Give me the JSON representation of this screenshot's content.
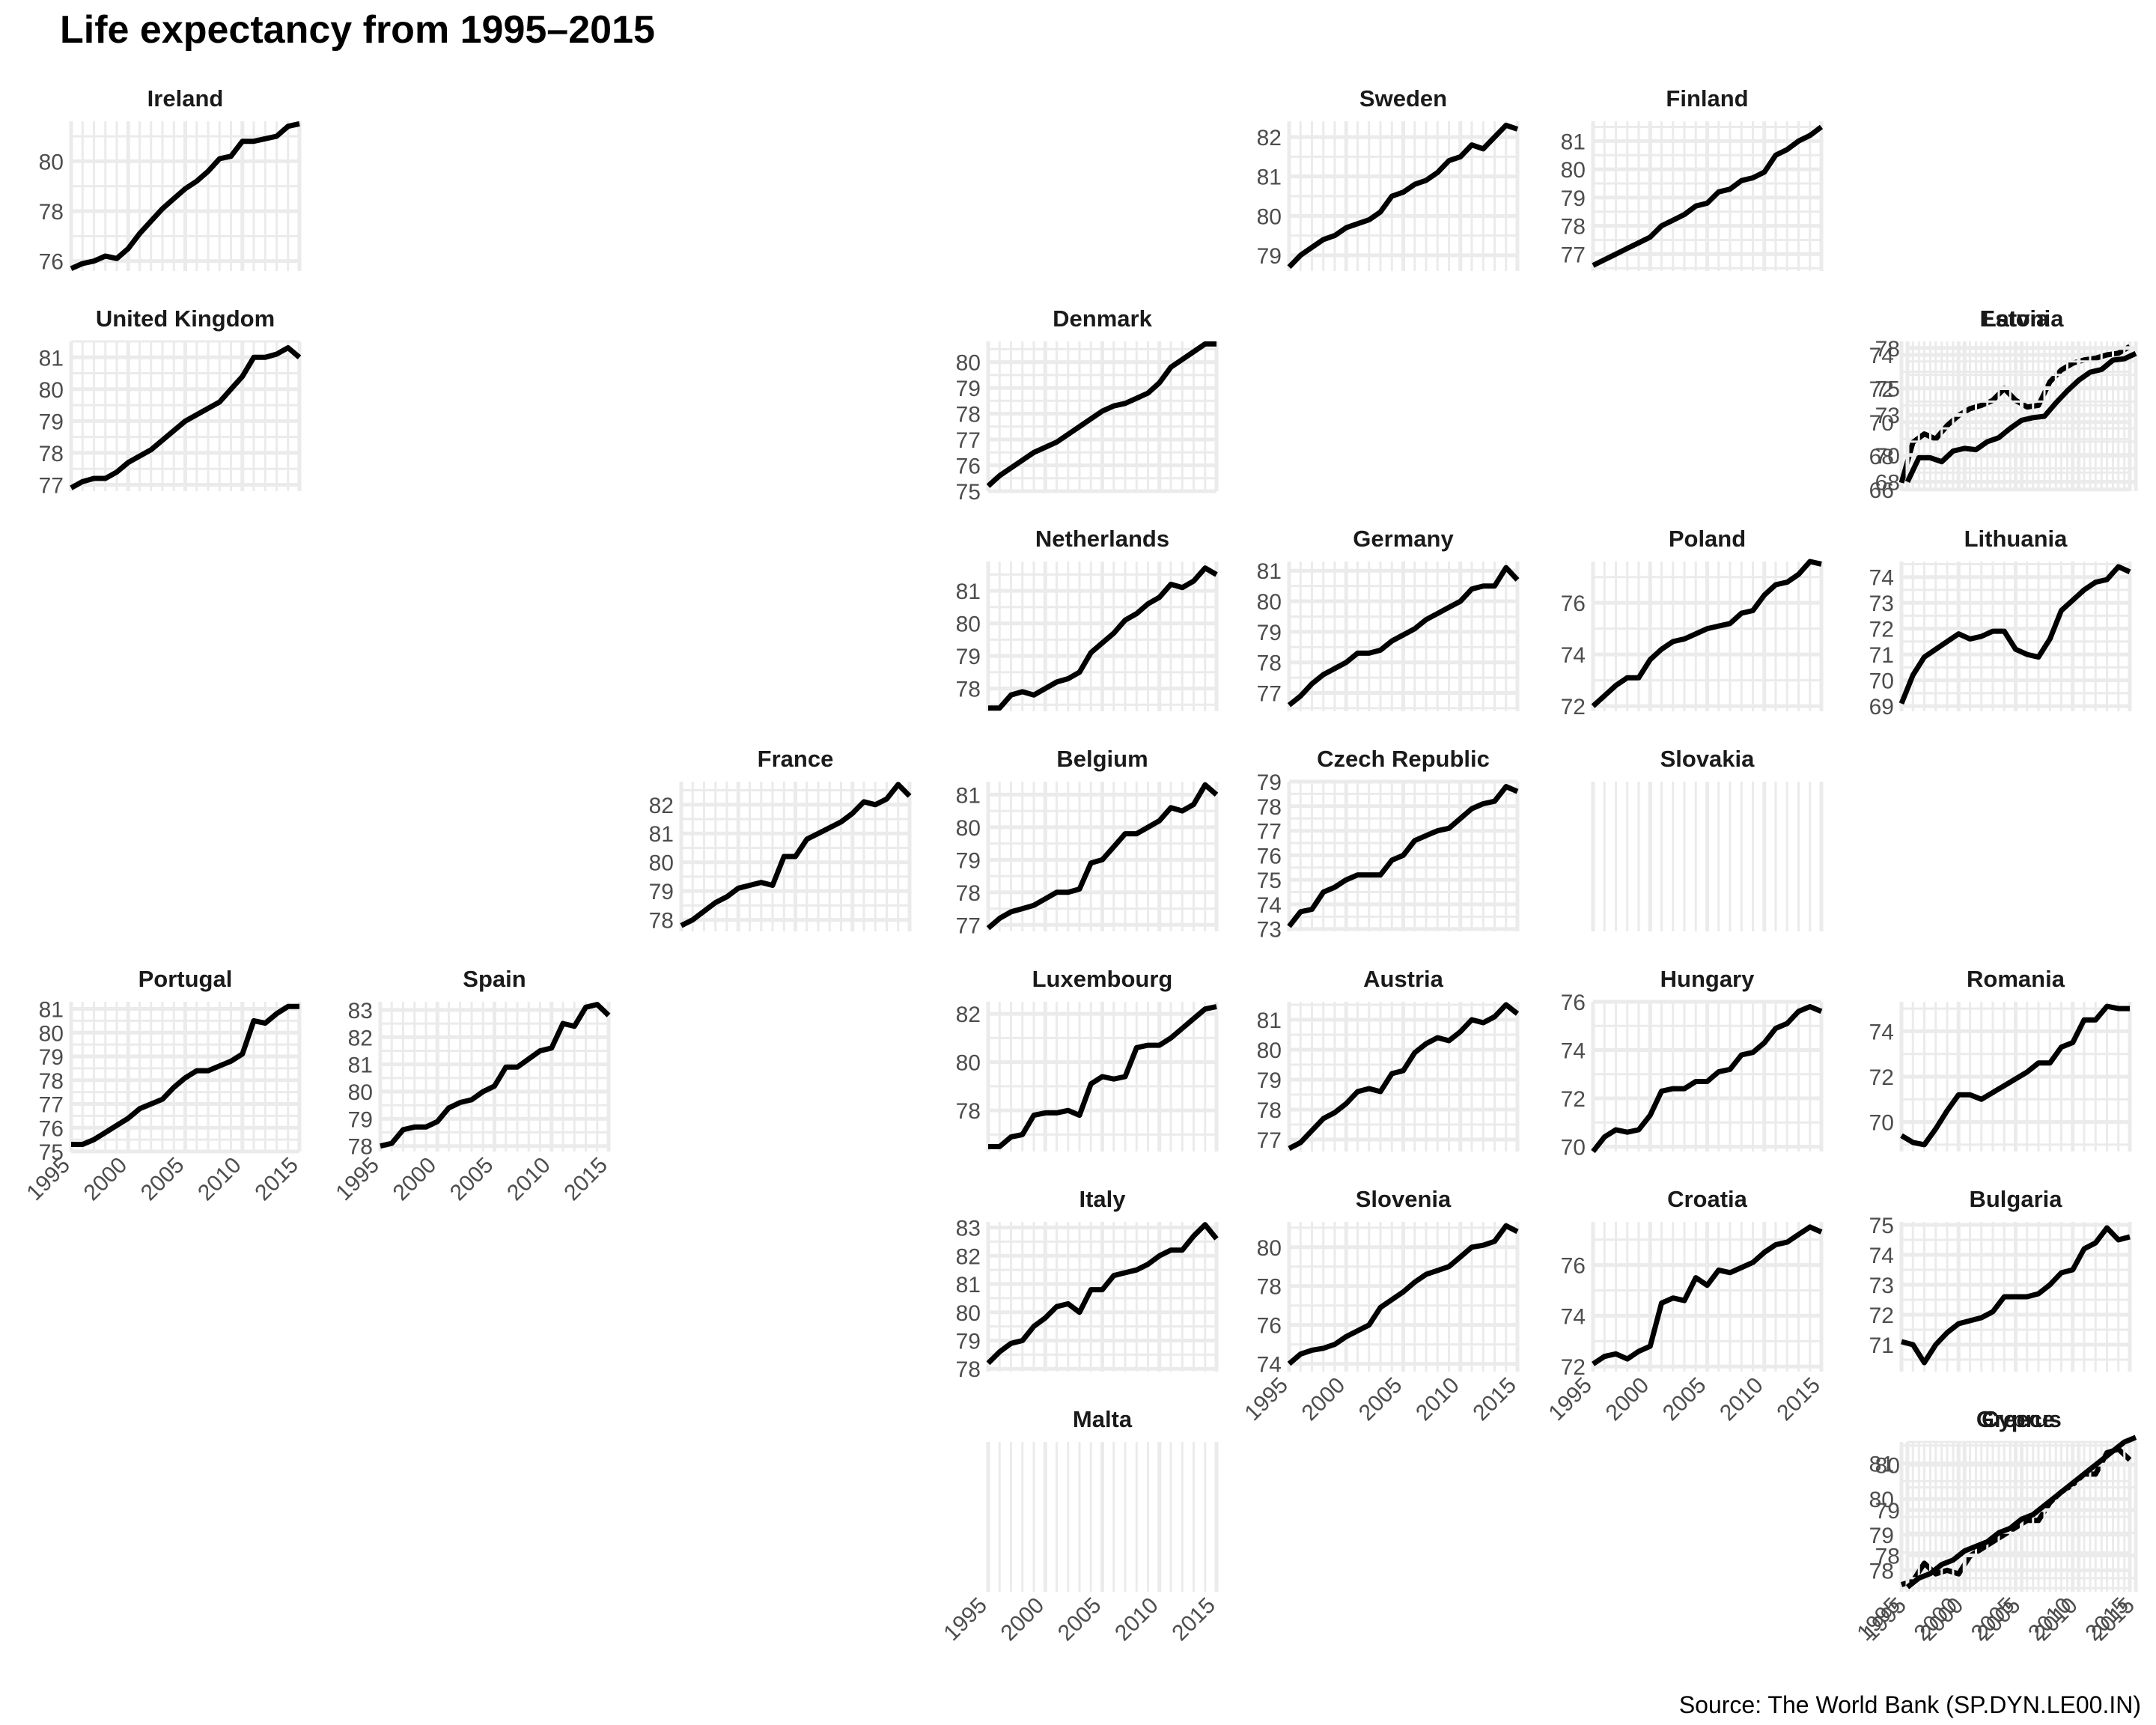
{
  "title": "Life expectancy from 1995–2015",
  "source": "Source: The World Bank (SP.DYN.LE00.IN)",
  "chart_data": {
    "type": "line",
    "x": [
      1995,
      1996,
      1997,
      1998,
      1999,
      2000,
      2001,
      2002,
      2003,
      2004,
      2005,
      2006,
      2007,
      2008,
      2009,
      2010,
      2011,
      2012,
      2013,
      2014,
      2015
    ],
    "x_ticks": [
      1995,
      2000,
      2005,
      2010,
      2015
    ],
    "line_color": "#000000",
    "grid_color": "#ebebeb",
    "panels": [
      {
        "name": "Ireland",
        "col": 0,
        "row": 0,
        "ylim": [
          75.6,
          81.6
        ],
        "yticks": [
          76,
          78,
          80
        ],
        "values": [
          75.7,
          75.9,
          76.0,
          76.2,
          76.1,
          76.5,
          77.1,
          77.6,
          78.1,
          78.5,
          78.9,
          79.2,
          79.6,
          80.1,
          80.2,
          80.8,
          80.8,
          80.9,
          81.0,
          81.4,
          81.5
        ]
      },
      {
        "name": "Sweden",
        "col": 4,
        "row": 0,
        "ylim": [
          78.6,
          82.4
        ],
        "yticks": [
          79,
          80,
          81,
          82
        ],
        "values": [
          78.7,
          79.0,
          79.2,
          79.4,
          79.5,
          79.7,
          79.8,
          79.9,
          80.1,
          80.5,
          80.6,
          80.8,
          80.9,
          81.1,
          81.4,
          81.5,
          81.8,
          81.7,
          82.0,
          82.3,
          82.2
        ]
      },
      {
        "name": "Finland",
        "col": 5,
        "row": 0,
        "ylim": [
          76.4,
          81.7
        ],
        "yticks": [
          77,
          78,
          79,
          80,
          81
        ],
        "values": [
          76.6,
          76.8,
          77.0,
          77.2,
          77.4,
          77.6,
          78.0,
          78.2,
          78.4,
          78.7,
          78.8,
          79.2,
          79.3,
          79.6,
          79.7,
          79.9,
          80.5,
          80.7,
          81.0,
          81.2,
          81.5
        ]
      },
      {
        "name": "United Kingdom",
        "col": 0,
        "row": 1,
        "ylim": [
          76.8,
          81.5
        ],
        "yticks": [
          77,
          78,
          79,
          80,
          81
        ],
        "values": [
          76.9,
          77.1,
          77.2,
          77.2,
          77.4,
          77.7,
          77.9,
          78.1,
          78.4,
          78.7,
          79.0,
          79.2,
          79.4,
          79.6,
          80.0,
          80.4,
          81.0,
          81.0,
          81.1,
          81.3,
          81.0
        ]
      },
      {
        "name": "Denmark",
        "col": 3,
        "row": 1,
        "ylim": [
          75.0,
          80.8
        ],
        "yticks": [
          75,
          76,
          77,
          78,
          79,
          80
        ],
        "values": [
          75.2,
          75.6,
          75.9,
          76.2,
          76.5,
          76.7,
          76.9,
          77.2,
          77.5,
          77.8,
          78.1,
          78.3,
          78.4,
          78.6,
          78.8,
          79.2,
          79.8,
          80.1,
          80.4,
          80.7,
          80.7
        ]
      },
      {
        "name": "Latvia",
        "col": 6,
        "row": 1,
        "ylim": [
          65.9,
          74.8
        ],
        "yticks": [
          66,
          68,
          70,
          72,
          74
        ],
        "values": [
          66.4,
          68.8,
          69.3,
          69.0,
          69.8,
          70.4,
          70.8,
          71.0,
          71.3,
          72.0,
          71.3,
          70.9,
          71.0,
          72.4,
          73.1,
          73.5,
          73.7,
          73.8,
          74.0,
          74.1,
          74.5
        ]
      },
      {
        "name": "Estonia",
        "col": 7,
        "row": 1,
        "ylim": [
          67.3,
          78.5
        ],
        "yticks": [
          68,
          70,
          73,
          75,
          78
        ],
        "values": [
          68.0,
          69.8,
          69.8,
          69.5,
          70.3,
          70.5,
          70.4,
          71.0,
          71.3,
          72.0,
          72.6,
          72.8,
          72.9,
          73.9,
          74.8,
          75.6,
          76.2,
          76.4,
          77.1,
          77.2,
          77.6
        ]
      },
      {
        "name": "Netherlands",
        "col": 3,
        "row": 2,
        "ylim": [
          77.3,
          81.9
        ],
        "yticks": [
          78,
          79,
          80,
          81
        ],
        "values": [
          77.4,
          77.4,
          77.8,
          77.9,
          77.8,
          78.0,
          78.2,
          78.3,
          78.5,
          79.1,
          79.4,
          79.7,
          80.1,
          80.3,
          80.6,
          80.8,
          81.2,
          81.1,
          81.3,
          81.7,
          81.5
        ]
      },
      {
        "name": "Germany",
        "col": 4,
        "row": 2,
        "ylim": [
          76.4,
          81.3
        ],
        "yticks": [
          77,
          78,
          79,
          80,
          81
        ],
        "values": [
          76.6,
          76.9,
          77.3,
          77.6,
          77.8,
          78.0,
          78.3,
          78.3,
          78.4,
          78.7,
          78.9,
          79.1,
          79.4,
          79.6,
          79.8,
          80.0,
          80.4,
          80.5,
          80.5,
          81.1,
          80.7
        ]
      },
      {
        "name": "Poland",
        "col": 5,
        "row": 2,
        "ylim": [
          71.8,
          77.6
        ],
        "yticks": [
          72,
          74,
          76
        ],
        "values": [
          72.0,
          72.4,
          72.8,
          73.1,
          73.1,
          73.8,
          74.2,
          74.5,
          74.6,
          74.8,
          75.0,
          75.1,
          75.2,
          75.6,
          75.7,
          76.3,
          76.7,
          76.8,
          77.1,
          77.6,
          77.5
        ]
      },
      {
        "name": "Lithuania",
        "col": 6,
        "row": 2,
        "ylim": [
          68.8,
          74.6
        ],
        "yticks": [
          69,
          70,
          71,
          72,
          73,
          74
        ],
        "values": [
          69.1,
          70.2,
          70.9,
          71.2,
          71.5,
          71.8,
          71.6,
          71.7,
          71.9,
          71.9,
          71.2,
          71.0,
          70.9,
          71.6,
          72.7,
          73.1,
          73.5,
          73.8,
          73.9,
          74.4,
          74.2
        ]
      },
      {
        "name": "France",
        "col": 2,
        "row": 3,
        "ylim": [
          77.6,
          82.8
        ],
        "yticks": [
          78,
          79,
          80,
          81,
          82
        ],
        "values": [
          77.8,
          78.0,
          78.3,
          78.6,
          78.8,
          79.1,
          79.2,
          79.3,
          79.2,
          80.2,
          80.2,
          80.8,
          81.0,
          81.2,
          81.4,
          81.7,
          82.1,
          82.0,
          82.2,
          82.7,
          82.3
        ]
      },
      {
        "name": "Belgium",
        "col": 3,
        "row": 3,
        "ylim": [
          76.8,
          81.4
        ],
        "yticks": [
          77,
          78,
          79,
          80,
          81
        ],
        "values": [
          76.9,
          77.2,
          77.4,
          77.5,
          77.6,
          77.8,
          78.0,
          78.0,
          78.1,
          78.9,
          79.0,
          79.4,
          79.8,
          79.8,
          80.0,
          80.2,
          80.6,
          80.5,
          80.7,
          81.3,
          81.0
        ]
      },
      {
        "name": "Czech Republic",
        "col": 4,
        "row": 3,
        "ylim": [
          72.9,
          79.0
        ],
        "yticks": [
          73,
          74,
          75,
          76,
          77,
          78,
          79
        ],
        "values": [
          73.1,
          73.7,
          73.8,
          74.5,
          74.7,
          75.0,
          75.2,
          75.2,
          75.2,
          75.8,
          76.0,
          76.6,
          76.8,
          77.0,
          77.1,
          77.5,
          77.9,
          78.1,
          78.2,
          78.8,
          78.6
        ]
      },
      {
        "name": "Slovakia",
        "col": 5,
        "row": 3,
        "ylim": [
          0,
          1
        ],
        "yticks": [],
        "values": []
      },
      {
        "name": "Portugal",
        "col": 0,
        "row": 4,
        "ylim": [
          75.0,
          81.3
        ],
        "yticks": [
          75,
          76,
          77,
          78,
          79,
          80,
          81
        ],
        "values": [
          75.3,
          75.3,
          75.5,
          75.8,
          76.1,
          76.4,
          76.8,
          77.0,
          77.2,
          77.7,
          78.1,
          78.4,
          78.4,
          78.6,
          78.8,
          79.1,
          80.5,
          80.4,
          80.8,
          81.1,
          81.1
        ]
      },
      {
        "name": "Spain",
        "col": 1,
        "row": 4,
        "ylim": [
          77.8,
          83.3
        ],
        "yticks": [
          78,
          79,
          80,
          81,
          82,
          83
        ],
        "values": [
          78.0,
          78.1,
          78.6,
          78.7,
          78.7,
          78.9,
          79.4,
          79.6,
          79.7,
          80.0,
          80.2,
          80.9,
          80.9,
          81.2,
          81.5,
          81.6,
          82.5,
          82.4,
          83.1,
          83.2,
          82.8
        ]
      },
      {
        "name": "Luxembourg",
        "col": 3,
        "row": 4,
        "ylim": [
          76.3,
          82.5
        ],
        "yticks": [
          78,
          80,
          82
        ],
        "values": [
          76.5,
          76.5,
          76.9,
          77.0,
          77.8,
          77.9,
          77.9,
          78.0,
          77.8,
          79.1,
          79.4,
          79.3,
          79.4,
          80.6,
          80.7,
          80.7,
          81.0,
          81.4,
          81.8,
          82.2,
          82.3
        ]
      },
      {
        "name": "Austria",
        "col": 4,
        "row": 4,
        "ylim": [
          76.6,
          81.6
        ],
        "yticks": [
          77,
          78,
          79,
          80,
          81
        ],
        "values": [
          76.7,
          76.9,
          77.3,
          77.7,
          77.9,
          78.2,
          78.6,
          78.7,
          78.6,
          79.2,
          79.3,
          79.9,
          80.2,
          80.4,
          80.3,
          80.6,
          81.0,
          80.9,
          81.1,
          81.5,
          81.2
        ]
      },
      {
        "name": "Hungary",
        "col": 5,
        "row": 4,
        "ylim": [
          69.8,
          76.0
        ],
        "yticks": [
          70,
          72,
          74,
          76
        ],
        "values": [
          69.8,
          70.4,
          70.7,
          70.6,
          70.7,
          71.3,
          72.3,
          72.4,
          72.4,
          72.7,
          72.7,
          73.1,
          73.2,
          73.8,
          73.9,
          74.3,
          74.9,
          75.1,
          75.6,
          75.8,
          75.6
        ]
      },
      {
        "name": "Romania",
        "col": 6,
        "row": 4,
        "ylim": [
          68.7,
          75.3
        ],
        "yticks": [
          70,
          72,
          74
        ],
        "values": [
          69.4,
          69.1,
          69.0,
          69.7,
          70.5,
          71.2,
          71.2,
          71.0,
          71.3,
          71.6,
          71.9,
          72.2,
          72.6,
          72.6,
          73.3,
          73.5,
          74.5,
          74.5,
          75.1,
          75.0,
          75.0
        ]
      },
      {
        "name": "Italy",
        "col": 3,
        "row": 5,
        "ylim": [
          77.9,
          83.2
        ],
        "yticks": [
          78,
          79,
          80,
          81,
          82,
          83
        ],
        "values": [
          78.2,
          78.6,
          78.9,
          79.0,
          79.5,
          79.8,
          80.2,
          80.3,
          80.0,
          80.8,
          80.8,
          81.3,
          81.4,
          81.5,
          81.7,
          82.0,
          82.2,
          82.2,
          82.7,
          83.1,
          82.6
        ]
      },
      {
        "name": "Slovenia",
        "col": 4,
        "row": 5,
        "ylim": [
          73.6,
          81.3
        ],
        "yticks": [
          74,
          76,
          78,
          80
        ],
        "values": [
          74.0,
          74.5,
          74.7,
          74.8,
          75.0,
          75.4,
          75.7,
          76.0,
          76.9,
          77.3,
          77.7,
          78.2,
          78.6,
          78.8,
          79.0,
          79.5,
          80.0,
          80.1,
          80.3,
          81.1,
          80.8
        ]
      },
      {
        "name": "Croatia",
        "col": 5,
        "row": 5,
        "ylim": [
          71.8,
          77.7
        ],
        "yticks": [
          72,
          74,
          76
        ],
        "values": [
          72.1,
          72.4,
          72.5,
          72.3,
          72.6,
          72.8,
          74.5,
          74.7,
          74.6,
          75.5,
          75.2,
          75.8,
          75.7,
          75.9,
          76.1,
          76.5,
          76.8,
          76.9,
          77.2,
          77.5,
          77.3
        ]
      },
      {
        "name": "Bulgaria",
        "col": 6,
        "row": 5,
        "ylim": [
          70.1,
          75.1
        ],
        "yticks": [
          71,
          72,
          73,
          74,
          75
        ],
        "values": [
          71.1,
          71.0,
          70.4,
          71.0,
          71.4,
          71.7,
          71.8,
          71.9,
          72.1,
          72.6,
          72.6,
          72.6,
          72.7,
          73.0,
          73.4,
          73.5,
          74.2,
          74.4,
          74.9,
          74.5,
          74.6
        ]
      },
      {
        "name": "Malta",
        "col": 3,
        "row": 6,
        "ylim": [
          0,
          1
        ],
        "yticks": [],
        "values": []
      },
      {
        "name": "Greece",
        "col": 6,
        "row": 6,
        "ylim": [
          77.4,
          81.6
        ],
        "yticks": [
          78,
          79,
          80,
          81
        ],
        "values": [
          77.6,
          77.7,
          78.2,
          77.9,
          78.0,
          77.9,
          78.4,
          78.6,
          78.8,
          79.0,
          79.2,
          79.4,
          79.4,
          79.9,
          80.2,
          80.4,
          80.7,
          80.7,
          81.3,
          81.4,
          81.1
        ]
      },
      {
        "name": "Cyprus",
        "col": 7,
        "row": 6,
        "ylim": [
          77.2,
          80.5
        ],
        "yticks": [
          78,
          79,
          80
        ],
        "values": [
          77.3,
          77.5,
          77.6,
          77.8,
          77.9,
          78.1,
          78.2,
          78.3,
          78.5,
          78.6,
          78.8,
          78.9,
          79.1,
          79.3,
          79.5,
          79.7,
          79.9,
          80.1,
          80.3,
          80.5,
          80.6
        ]
      }
    ],
    "x_tick_panels": [
      "Portugal",
      "Spain",
      "Malta",
      "Slovenia",
      "Croatia",
      "Greece",
      "Cyprus"
    ]
  }
}
